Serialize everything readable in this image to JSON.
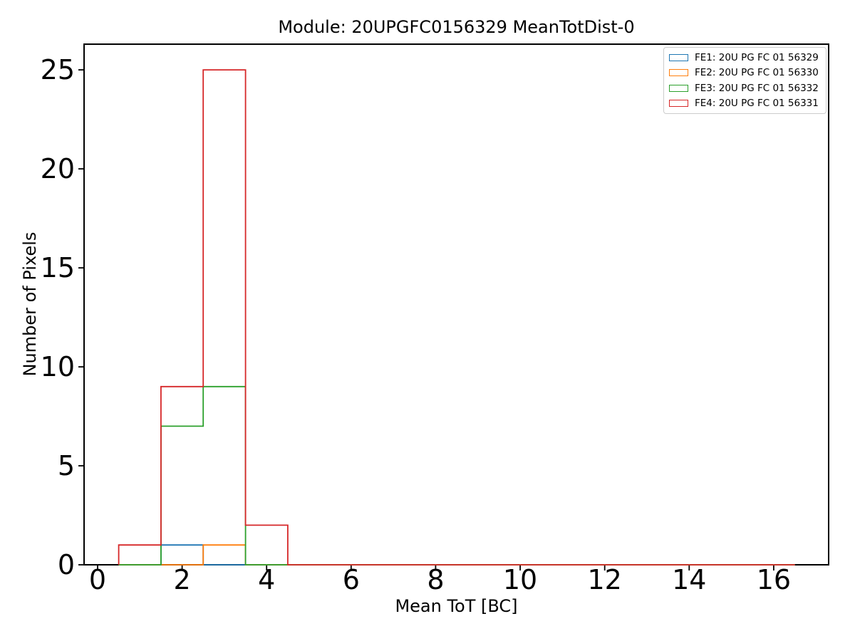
{
  "figure": {
    "title": "Module: 20UPGFC0156329 MeanTotDist-0"
  },
  "chart_data": {
    "type": "histogram-step",
    "title": "Module: 20UPGFC0156329 MeanTotDist-0",
    "xlabel": "Mean ToT [BC]",
    "ylabel": "Number of Pixels",
    "bin_edges": [
      0.5,
      1.5,
      2.5,
      3.5,
      4.5,
      5.5,
      6.5,
      7.5,
      8.5,
      9.5,
      10.5,
      11.5,
      12.5,
      13.5,
      14.5,
      15.5,
      16.5
    ],
    "series": [
      {
        "name": "FE1: 20U PG FC 01 56329",
        "color": "#1f77b4",
        "counts": [
          0,
          1,
          0,
          0,
          0,
          0,
          0,
          0,
          0,
          0,
          0,
          0,
          0,
          0,
          0,
          0
        ]
      },
      {
        "name": "FE2: 20U PG FC 01 56330",
        "color": "#ff7f0e",
        "counts": [
          0,
          0,
          1,
          0,
          0,
          0,
          0,
          0,
          0,
          0,
          0,
          0,
          0,
          0,
          0,
          0
        ]
      },
      {
        "name": "FE3: 20U PG FC 01 56332",
        "color": "#2ca02c",
        "counts": [
          0,
          7,
          9,
          0,
          0,
          0,
          0,
          0,
          0,
          0,
          0,
          0,
          0,
          0,
          0,
          0
        ]
      },
      {
        "name": "FE4: 20U PG FC 01 56331",
        "color": "#d62728",
        "counts": [
          1,
          9,
          25,
          2,
          0,
          0,
          0,
          0,
          0,
          0,
          0,
          0,
          0,
          0,
          0,
          0
        ]
      }
    ],
    "xticks": [
      0,
      2,
      4,
      6,
      8,
      10,
      12,
      14,
      16
    ],
    "yticks": [
      0,
      5,
      10,
      15,
      20,
      25
    ],
    "xlim": [
      -0.32,
      17.3
    ],
    "ylim": [
      0,
      26.3
    ],
    "grid": false,
    "legend_position": "upper right",
    "axis_color": "#000000",
    "background_color": "#ffffff"
  }
}
